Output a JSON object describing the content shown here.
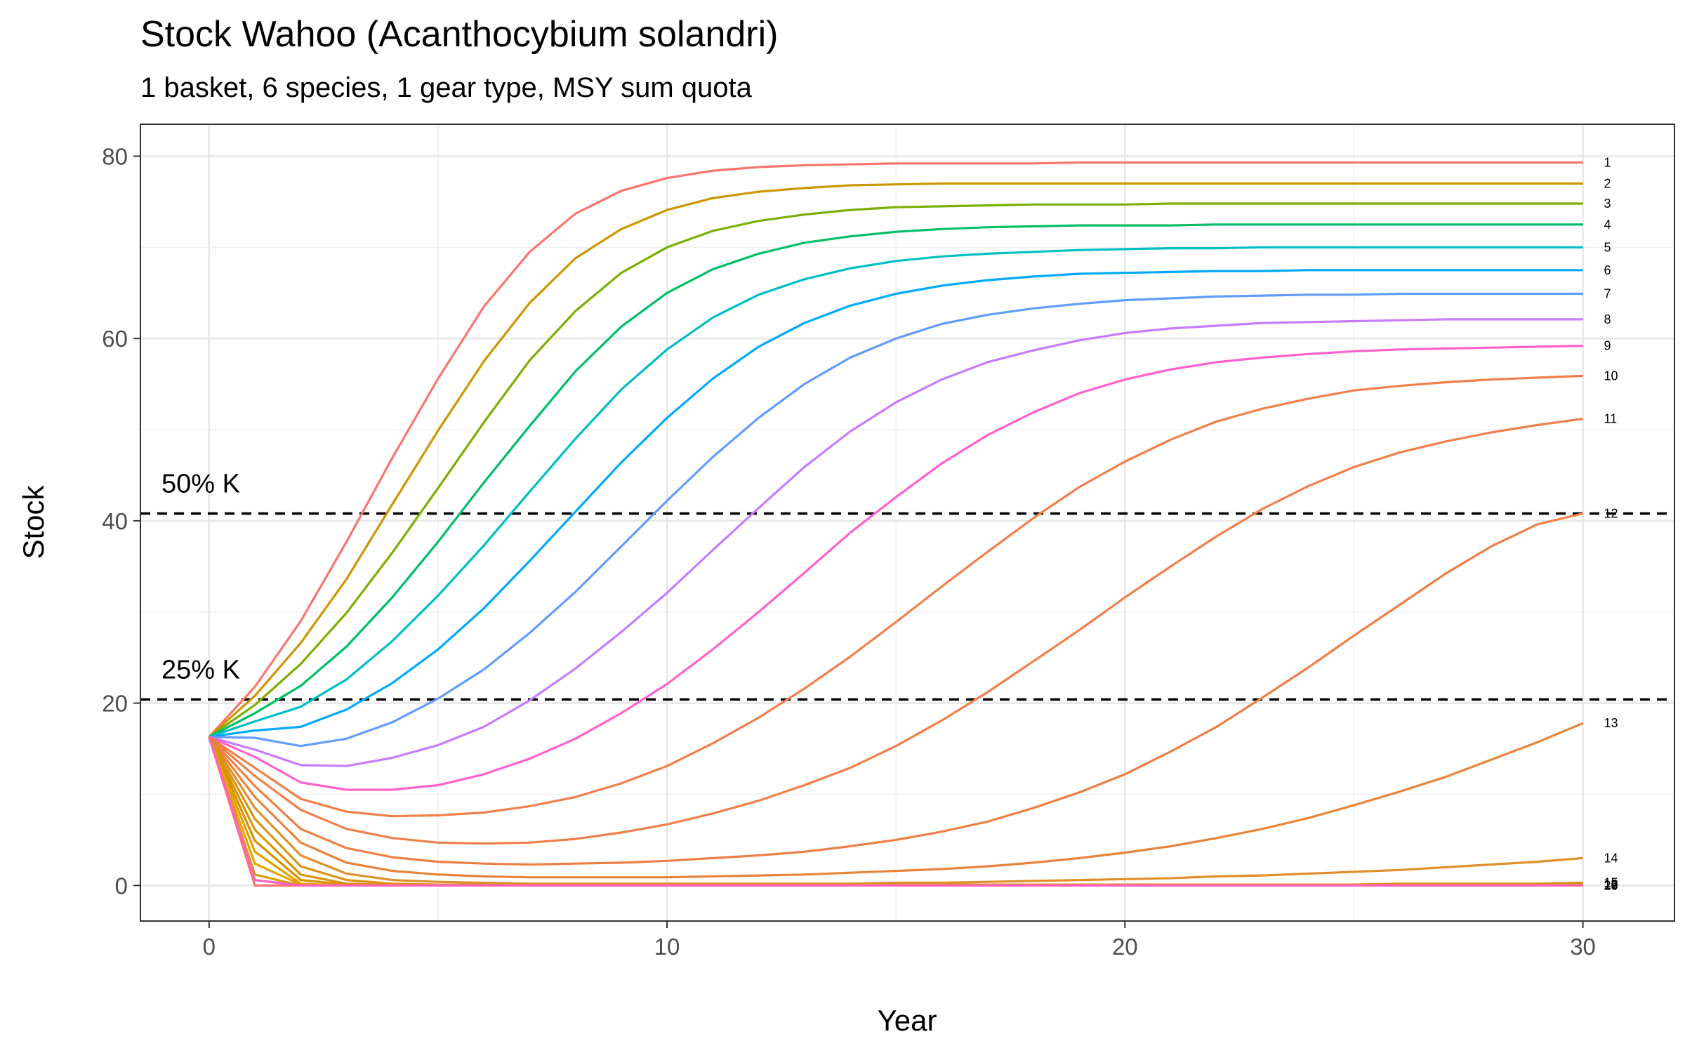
{
  "chart_data": {
    "type": "line",
    "title": "Stock Wahoo (Acanthocybium solandri)",
    "subtitle": "1 basket, 6 species, 1 gear type, MSY sum quota",
    "xlabel": "Year",
    "ylabel": "Stock",
    "xlim": [
      -1.5,
      32
    ],
    "ylim": [
      -3.9,
      83.5
    ],
    "xticks": [
      0,
      10,
      20,
      30
    ],
    "yticks": [
      0,
      20,
      40,
      60,
      80
    ],
    "grid": true,
    "legend": "none",
    "reference_lines": [
      {
        "y": 40.8,
        "label": "50% K"
      },
      {
        "y": 20.4,
        "label": "25% K"
      }
    ],
    "x": [
      0,
      1,
      2,
      3,
      4,
      5,
      6,
      7,
      8,
      9,
      10,
      11,
      12,
      13,
      14,
      15,
      16,
      17,
      18,
      19,
      20,
      21,
      22,
      23,
      24,
      25,
      26,
      27,
      28,
      29,
      30
    ],
    "series": [
      {
        "name": "1",
        "color": "#F8766D",
        "values": [
          16.3,
          21.8,
          29.0,
          37.7,
          46.9,
          55.6,
          63.5,
          69.5,
          73.7,
          76.2,
          77.6,
          78.4,
          78.8,
          79.0,
          79.1,
          79.2,
          79.2,
          79.2,
          79.2,
          79.3,
          79.3,
          79.3,
          79.3,
          79.3,
          79.3,
          79.3,
          79.3,
          79.3,
          79.3,
          79.3,
          79.3
        ]
      },
      {
        "name": "2",
        "color": "#CD9600",
        "values": [
          16.3,
          20.8,
          26.6,
          33.6,
          41.8,
          49.9,
          57.5,
          63.9,
          68.8,
          72.0,
          74.1,
          75.4,
          76.1,
          76.5,
          76.8,
          76.9,
          77.0,
          77.0,
          77.0,
          77.0,
          77.0,
          77.0,
          77.0,
          77.0,
          77.0,
          77.0,
          77.0,
          77.0,
          77.0,
          77.0,
          77.0
        ]
      },
      {
        "name": "3",
        "color": "#7CAE00",
        "values": [
          16.3,
          19.8,
          24.3,
          29.9,
          36.5,
          43.6,
          50.8,
          57.6,
          63.0,
          67.2,
          70.0,
          71.8,
          72.9,
          73.6,
          74.1,
          74.4,
          74.5,
          74.6,
          74.7,
          74.7,
          74.7,
          74.8,
          74.8,
          74.8,
          74.8,
          74.8,
          74.8,
          74.8,
          74.8,
          74.8,
          74.8
        ]
      },
      {
        "name": "4",
        "color": "#00BE67",
        "values": [
          16.3,
          18.9,
          21.9,
          26.2,
          31.6,
          37.7,
          44.2,
          50.4,
          56.4,
          61.3,
          65.0,
          67.6,
          69.3,
          70.5,
          71.2,
          71.7,
          72.0,
          72.2,
          72.3,
          72.4,
          72.4,
          72.4,
          72.5,
          72.5,
          72.5,
          72.5,
          72.5,
          72.5,
          72.5,
          72.5,
          72.5
        ]
      },
      {
        "name": "5",
        "color": "#00BFC4",
        "values": [
          16.3,
          18.0,
          19.6,
          22.6,
          26.8,
          31.8,
          37.3,
          43.2,
          49.0,
          54.4,
          58.8,
          62.3,
          64.8,
          66.5,
          67.7,
          68.5,
          69.0,
          69.3,
          69.5,
          69.7,
          69.8,
          69.9,
          69.9,
          70.0,
          70.0,
          70.0,
          70.0,
          70.0,
          70.0,
          70.0,
          70.0
        ]
      },
      {
        "name": "6",
        "color": "#00A9FF",
        "values": [
          16.3,
          17.0,
          17.4,
          19.3,
          22.2,
          25.9,
          30.4,
          35.6,
          41.0,
          46.4,
          51.3,
          55.6,
          59.1,
          61.7,
          63.6,
          64.9,
          65.8,
          66.4,
          66.8,
          67.1,
          67.2,
          67.3,
          67.4,
          67.4,
          67.5,
          67.5,
          67.5,
          67.5,
          67.5,
          67.5,
          67.5
        ]
      },
      {
        "name": "7",
        "color": "#619CFF",
        "values": [
          16.3,
          16.2,
          15.3,
          16.1,
          17.9,
          20.5,
          23.7,
          27.7,
          32.2,
          37.2,
          42.2,
          47.0,
          51.3,
          55.0,
          57.9,
          60.0,
          61.6,
          62.6,
          63.3,
          63.8,
          64.2,
          64.4,
          64.6,
          64.7,
          64.8,
          64.8,
          64.9,
          64.9,
          64.9,
          64.9,
          64.9
        ]
      },
      {
        "name": "8",
        "color": "#C77CFF",
        "values": [
          16.3,
          14.9,
          13.2,
          13.1,
          14.0,
          15.4,
          17.4,
          20.3,
          23.8,
          27.8,
          32.1,
          36.8,
          41.4,
          45.9,
          49.8,
          53.0,
          55.5,
          57.4,
          58.7,
          59.8,
          60.6,
          61.1,
          61.4,
          61.7,
          61.8,
          61.9,
          62.0,
          62.1,
          62.1,
          62.1,
          62.1
        ]
      },
      {
        "name": "9",
        "color": "#FF61CC",
        "values": [
          16.3,
          14.1,
          11.3,
          10.5,
          10.5,
          11.0,
          12.2,
          13.9,
          16.1,
          18.9,
          22.1,
          25.9,
          30.0,
          34.3,
          38.7,
          42.6,
          46.3,
          49.4,
          51.9,
          54.0,
          55.5,
          56.6,
          57.4,
          57.9,
          58.3,
          58.6,
          58.8,
          58.9,
          59.0,
          59.1,
          59.2
        ]
      },
      {
        "name": "10",
        "color": "#F07F4A",
        "values": [
          16.3,
          12.9,
          9.5,
          8.1,
          7.6,
          7.7,
          8.0,
          8.7,
          9.7,
          11.2,
          13.1,
          15.6,
          18.4,
          21.6,
          25.1,
          28.9,
          32.8,
          36.6,
          40.3,
          43.7,
          46.5,
          48.9,
          50.9,
          52.3,
          53.4,
          54.3,
          54.8,
          55.2,
          55.5,
          55.7,
          55.9
        ]
      },
      {
        "name": "11",
        "color": "#F07F4A",
        "values": [
          16.3,
          12.0,
          8.3,
          6.2,
          5.2,
          4.7,
          4.6,
          4.7,
          5.1,
          5.8,
          6.7,
          7.9,
          9.3,
          11.0,
          12.9,
          15.3,
          18.1,
          21.2,
          24.6,
          28.0,
          31.6,
          35.0,
          38.3,
          41.3,
          43.8,
          45.9,
          47.5,
          48.7,
          49.7,
          50.5,
          51.2
        ]
      },
      {
        "name": "12",
        "color": "#EE7F44",
        "values": [
          16.3,
          10.9,
          6.2,
          4.1,
          3.1,
          2.6,
          2.4,
          2.3,
          2.4,
          2.5,
          2.7,
          3.0,
          3.3,
          3.7,
          4.3,
          5.0,
          5.9,
          7.0,
          8.5,
          10.2,
          12.2,
          14.7,
          17.4,
          20.6,
          23.9,
          27.4,
          30.8,
          34.2,
          37.2,
          39.6,
          40.8
        ]
      },
      {
        "name": "13",
        "color": "#E8833A",
        "values": [
          16.3,
          9.7,
          4.7,
          2.5,
          1.6,
          1.2,
          1.0,
          0.9,
          0.9,
          0.9,
          0.9,
          1.0,
          1.1,
          1.2,
          1.4,
          1.6,
          1.8,
          2.1,
          2.5,
          3.0,
          3.6,
          4.3,
          5.2,
          6.2,
          7.4,
          8.8,
          10.3,
          11.9,
          13.8,
          15.7,
          17.8
        ]
      },
      {
        "name": "14",
        "color": "#E08F2A",
        "values": [
          16.3,
          8.5,
          3.3,
          1.3,
          0.6,
          0.4,
          0.3,
          0.2,
          0.2,
          0.2,
          0.2,
          0.2,
          0.2,
          0.2,
          0.2,
          0.3,
          0.3,
          0.4,
          0.5,
          0.6,
          0.7,
          0.8,
          1.0,
          1.1,
          1.3,
          1.5,
          1.7,
          2.0,
          2.3,
          2.6,
          3.0
        ]
      },
      {
        "name": "15",
        "color": "#DA9313",
        "values": [
          16.3,
          7.3,
          2.1,
          0.6,
          0.2,
          0.1,
          0.1,
          0.1,
          0.1,
          0.1,
          0.1,
          0.1,
          0.1,
          0.1,
          0.1,
          0.1,
          0.1,
          0.1,
          0.1,
          0.1,
          0.1,
          0.1,
          0.1,
          0.1,
          0.1,
          0.1,
          0.2,
          0.2,
          0.2,
          0.2,
          0.3
        ]
      },
      {
        "name": "16",
        "color": "#D89500",
        "values": [
          16.3,
          6.1,
          1.2,
          0.2,
          0.1,
          0.0,
          0.0,
          0.0,
          0.0,
          0.0,
          0.0,
          0.0,
          0.0,
          0.0,
          0.0,
          0.0,
          0.0,
          0.0,
          0.0,
          0.0,
          0.0,
          0.0,
          0.0,
          0.0,
          0.0,
          0.0,
          0.0,
          0.0,
          0.0,
          0.0,
          0.1
        ]
      },
      {
        "name": "17",
        "color": "#D68F00",
        "values": [
          16.3,
          4.9,
          0.6,
          0.1,
          0.0,
          0.0,
          0.0,
          0.0,
          0.0,
          0.0,
          0.0,
          0.0,
          0.0,
          0.0,
          0.0,
          0.0,
          0.0,
          0.0,
          0.0,
          0.0,
          0.0,
          0.0,
          0.0,
          0.0,
          0.0,
          0.0,
          0.0,
          0.0,
          0.0,
          0.0,
          0.0
        ]
      },
      {
        "name": "18",
        "color": "#E0A000",
        "values": [
          16.3,
          3.7,
          0.2,
          0.0,
          0.0,
          0.0,
          0.0,
          0.0,
          0.0,
          0.0,
          0.0,
          0.0,
          0.0,
          0.0,
          0.0,
          0.0,
          0.0,
          0.0,
          0.0,
          0.0,
          0.0,
          0.0,
          0.0,
          0.0,
          0.0,
          0.0,
          0.0,
          0.0,
          0.0,
          0.0,
          0.0
        ]
      },
      {
        "name": "19",
        "color": "#E6A400",
        "values": [
          16.3,
          2.4,
          0.1,
          0.0,
          0.0,
          0.0,
          0.0,
          0.0,
          0.0,
          0.0,
          0.0,
          0.0,
          0.0,
          0.0,
          0.0,
          0.0,
          0.0,
          0.0,
          0.0,
          0.0,
          0.0,
          0.0,
          0.0,
          0.0,
          0.0,
          0.0,
          0.0,
          0.0,
          0.0,
          0.0,
          0.0
        ]
      },
      {
        "name": "20",
        "color": "#D4A000",
        "values": [
          16.3,
          1.2,
          0.0,
          0.0,
          0.0,
          0.0,
          0.0,
          0.0,
          0.0,
          0.0,
          0.0,
          0.0,
          0.0,
          0.0,
          0.0,
          0.0,
          0.0,
          0.0,
          0.0,
          0.0,
          0.0,
          0.0,
          0.0,
          0.0,
          0.0,
          0.0,
          0.0,
          0.0,
          0.0,
          0.0,
          0.0
        ]
      },
      {
        "name": "",
        "color": "#F8766D",
        "values": [
          16.3,
          0.0,
          0.0,
          0.0,
          0.0,
          0.0,
          0.0,
          0.0,
          0.0,
          0.0,
          0.0,
          0.0,
          0.0,
          0.0,
          0.0,
          0.0,
          0.0,
          0.0,
          0.0,
          0.0,
          0.0,
          0.0,
          0.0,
          0.0,
          0.0,
          0.0,
          0.0,
          0.0,
          0.0,
          0.0,
          0.0
        ]
      },
      {
        "name": "",
        "color": "#FF61C3",
        "values": [
          16.3,
          0.6,
          0.0,
          0.0,
          0.0,
          0.0,
          0.0,
          0.0,
          0.0,
          0.0,
          0.0,
          0.0,
          0.0,
          0.0,
          0.0,
          0.0,
          0.0,
          0.0,
          0.0,
          0.0,
          0.0,
          0.0,
          0.0,
          0.0,
          0.0,
          0.0,
          0.0,
          0.0,
          0.0,
          0.0,
          0.0
        ]
      }
    ]
  }
}
